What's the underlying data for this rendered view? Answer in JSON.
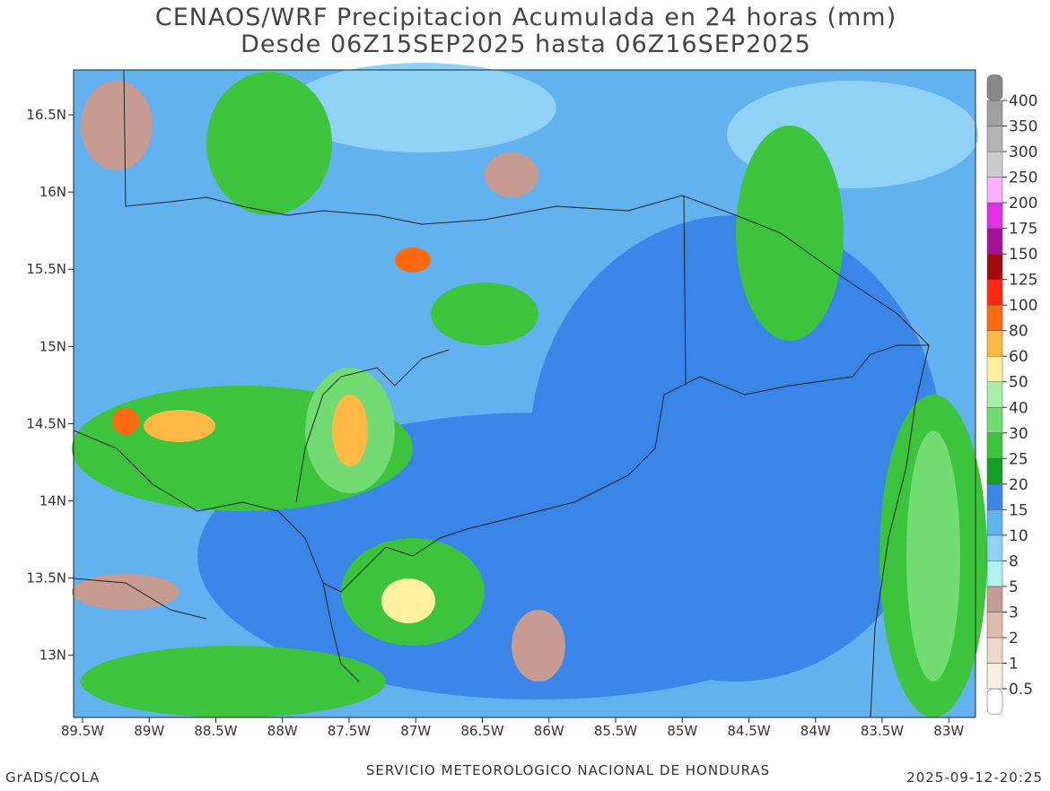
{
  "title": "CENAOS/WRF Precipitacion Acumulada en 24 horas (mm)",
  "subtitle": "Desde 06Z15SEP2025 hasta 06Z16SEP2025",
  "x_labels": [
    "89.5W",
    "89W",
    "88.5W",
    "88W",
    "87.5W",
    "87W",
    "86.5W",
    "86W",
    "85.5W",
    "85W",
    "84.5W",
    "84W",
    "83.5W",
    "83W"
  ],
  "y_labels": [
    "16.5N",
    "16N",
    "15.5N",
    "15N",
    "14.5N",
    "14N",
    "13.5N",
    "13N"
  ],
  "colorbar": {
    "levels": [
      0.5,
      1,
      2,
      3,
      5,
      8,
      10,
      15,
      20,
      25,
      30,
      40,
      50,
      60,
      80,
      100,
      125,
      150,
      175,
      200,
      250,
      300,
      350,
      400
    ],
    "colors": [
      "#ffffff",
      "#f7ede2",
      "#ecd8c8",
      "#dbbcad",
      "#c69c92",
      "#b4f0f2",
      "#90d2f6",
      "#62b2f0",
      "#3a86e8",
      "#17a027",
      "#3cc43c",
      "#72dc72",
      "#a8eea8",
      "#fff0a0",
      "#ffb844",
      "#ff6a10",
      "#ff2a10",
      "#a00a0a",
      "#a0109a",
      "#e030e8",
      "#f8b0f8",
      "#cccccc",
      "#b4b4b4",
      "#a0a0a0",
      "#888888"
    ]
  },
  "footer": {
    "left": "GrADS/COLA",
    "center": "SERVICIO METEOROLOGICO NACIONAL DE HONDURAS",
    "right": "2025-09-12-20:25"
  }
}
